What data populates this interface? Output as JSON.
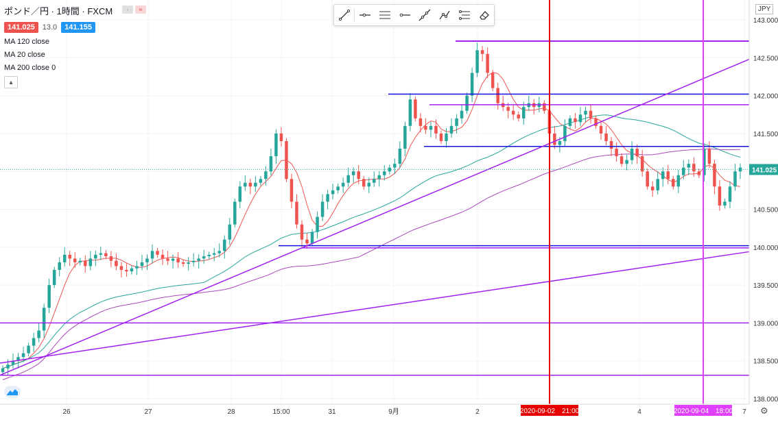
{
  "header": {
    "title": "ポンド／円 · 1時間 · FXCM",
    "sell_price": "141.025",
    "spread": "13.0",
    "buy_price": "141.155",
    "indicators": [
      "MA 120 close",
      "MA 20 close",
      "MA 200 close 0"
    ]
  },
  "currency": "JPY",
  "current_price_label": "141.025",
  "crosshair_labels": [
    "2020-09-02　21:00",
    "2020-09-04　18:00"
  ],
  "toolbar": {
    "tools": [
      "trend-line-icon",
      "ray-icon",
      "parallel-channel-icon",
      "horizontal-ray-icon",
      "extended-line-icon",
      "polyline-icon",
      "fib-icon",
      "eraser-icon"
    ]
  },
  "colors": {
    "up": "#26a69a",
    "down": "#ef5350",
    "ma20": "#ef5350",
    "ma120": "#26a69a",
    "ma200": "#ab47bc",
    "purple_line": "#a020f0",
    "blue_line": "#1010e0",
    "red_vline": "#e60000",
    "magenta_vline": "#e040fb"
  },
  "chart_data": {
    "type": "candlestick",
    "y_ticks": [
      "143.000",
      "142.500",
      "142.000",
      "141.500",
      "141.000",
      "140.500",
      "140.000",
      "139.500",
      "139.000",
      "138.500",
      "138.000"
    ],
    "ylim": [
      137.95,
      143.05
    ],
    "x_ticks": [
      "26",
      "27",
      "28",
      "15:00",
      "31",
      "9月",
      "2",
      "4",
      "7"
    ],
    "last_price": 141.025,
    "close_series": [
      138.4,
      138.45,
      138.5,
      138.55,
      138.6,
      138.7,
      138.8,
      138.9,
      139.2,
      139.5,
      139.7,
      139.8,
      139.9,
      139.85,
      139.8,
      139.82,
      139.75,
      139.85,
      139.9,
      139.92,
      139.88,
      139.82,
      139.75,
      139.7,
      139.68,
      139.72,
      139.75,
      139.8,
      139.85,
      139.95,
      139.9,
      139.85,
      139.82,
      139.85,
      139.8,
      139.78,
      139.8,
      139.82,
      139.85,
      139.88,
      139.9,
      139.92,
      139.95,
      140.1,
      140.3,
      140.6,
      140.8,
      140.85,
      140.8,
      140.85,
      140.9,
      141.0,
      141.2,
      141.5,
      141.4,
      140.9,
      140.6,
      140.3,
      140.1,
      140.05,
      140.2,
      140.4,
      140.6,
      140.7,
      140.75,
      140.8,
      140.85,
      140.95,
      141.0,
      140.9,
      140.8,
      140.85,
      140.9,
      140.95,
      141.0,
      141.05,
      141.1,
      141.3,
      141.6,
      141.95,
      141.7,
      141.6,
      141.55,
      141.6,
      141.5,
      141.4,
      141.5,
      141.6,
      141.7,
      141.8,
      142.0,
      142.3,
      142.6,
      142.55,
      142.3,
      142.1,
      141.9,
      141.85,
      141.8,
      141.75,
      141.7,
      141.85,
      141.9,
      141.85,
      141.9,
      141.8,
      141.5,
      141.35,
      141.4,
      141.6,
      141.7,
      141.65,
      141.75,
      141.8,
      141.7,
      141.6,
      141.5,
      141.4,
      141.3,
      141.2,
      141.1,
      141.15,
      141.3,
      141.2,
      141.0,
      140.8,
      140.75,
      140.9,
      141.0,
      140.9,
      140.8,
      140.95,
      141.05,
      141.1,
      141.0,
      140.95,
      141.3,
      141.1,
      140.8,
      140.55,
      140.6,
      140.8,
      141.0,
      141.05
    ],
    "overlays": {
      "ma20": "MA 20 close",
      "ma120": "MA 120 close",
      "ma200": "MA 200 close 0"
    }
  }
}
